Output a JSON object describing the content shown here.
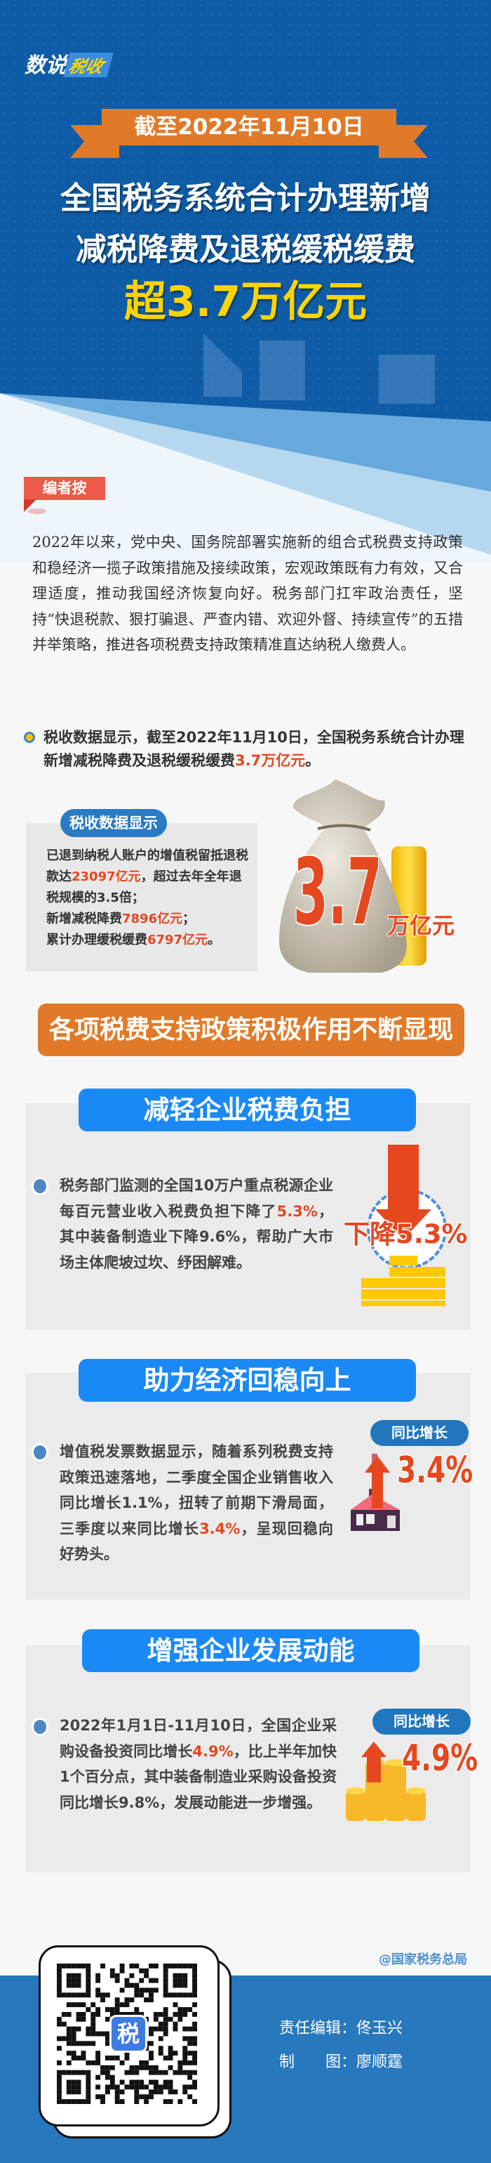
{
  "header": {
    "logo_part1": "数说",
    "logo_part2": "税收",
    "ribbon": "截至2022年11月10日",
    "title_line1": "全国税务系统合计办理新增",
    "title_line2": "减税降费及退税缓税缓费",
    "title_line3": "超3.7万亿元"
  },
  "editor_note": {
    "tag": "编者按",
    "text": "2022年以来，党中央、国务院部署实施新的组合式税费支持政策和稳经济一揽子政策措施及接续政策，宏观政策既有力有效，又合理适度，推动我国经济恢复向好。税务部门扛牢政治责任，坚持“快退税款、狠打骗退、严查内错、欢迎外督、持续宣传”的五措并举策略，推进各项税费支持政策精准直达纳税人缴费人。"
  },
  "lead": [
    {
      "t": "税收数据显示，截至2022年11月10日，全国税务系统合计办理新增减税降费及退税缓税缓费"
    },
    {
      "t": "3.7万亿元",
      "hl": true
    },
    {
      "t": "。"
    }
  ],
  "stats": {
    "pill": "税收数据显示",
    "text": [
      {
        "t": "已退到纳税人账户的增值税留抵退税款达"
      },
      {
        "t": "23097亿元",
        "hl": true
      },
      {
        "t": "，超过去年全年退税规模的3.5倍；\n新增减税降费"
      },
      {
        "t": "7896亿元",
        "hl": true
      },
      {
        "t": "；\n累计办理缓税缓费"
      },
      {
        "t": "6797亿元",
        "hl": true
      },
      {
        "t": "。"
      }
    ],
    "big_number": "3.7",
    "big_unit": "万亿元"
  },
  "banner": "各项税费支持政策积极作用不断显现",
  "sections": [
    {
      "title": "减轻企业税费负担",
      "text": [
        {
          "t": "税务部门监测的全国10万户重点税源企业每百元营业收入税费负担下降了"
        },
        {
          "t": "5.3%",
          "hl": true
        },
        {
          "t": "，其中装备制造业下降9.6%，帮助广大市场主体爬坡过坎、纾困解难。"
        }
      ],
      "figure": "下降5.3%"
    },
    {
      "title": "助力经济回稳向上",
      "text": [
        {
          "t": "增值税发票数据显示，随着系列税费支持政策迅速落地，二季度全国企业销售收入同比增长1.1%，扭转了前期下滑局面，三季度以来同比增长"
        },
        {
          "t": "3.4%",
          "hl": true
        },
        {
          "t": "，呈现回稳向好势头。"
        }
      ],
      "pill": "同比增长",
      "figure": "3.4%"
    },
    {
      "title": "增强企业发展动能",
      "text": [
        {
          "t": "2022年1月1日-11月10日，全国企业采购设备投资同比增长"
        },
        {
          "t": "4.9%",
          "hl": true
        },
        {
          "t": "，比上半年加快1个百分点，其中装备制造业采购设备投资同比增长9.8%，发展动能进一步增强。"
        }
      ],
      "pill": "同比增长",
      "figure": "4.9%"
    }
  ],
  "footer": {
    "source": "@国家税务总局",
    "qr_logo": "税",
    "editor_label": "责任编辑：",
    "editor": "佟玉兴",
    "designer_label": "制　　图：",
    "designer": "廖顺霆"
  },
  "colors": {
    "header_blue": "#0f5ca6",
    "accent_orange": "#e07a29",
    "highlight_red": "#e5481f",
    "title_blue": "#1b89f5",
    "footer_blue": "#2878be",
    "gold": "#ffd400"
  }
}
